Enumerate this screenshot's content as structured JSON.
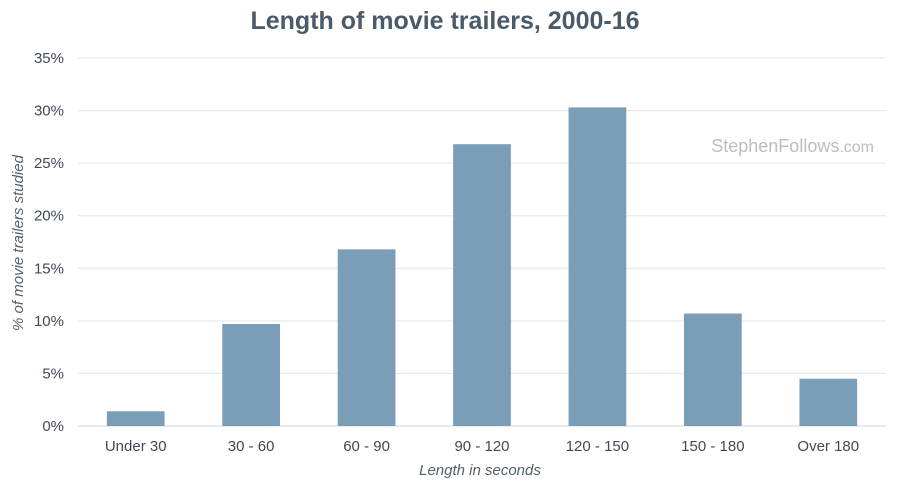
{
  "chart_data": {
    "type": "bar",
    "title": "Length of movie trailers, 2000-16",
    "xlabel": "Length in seconds",
    "ylabel": "% of movie trailers studied",
    "categories": [
      "Under 30",
      "30 - 60",
      "60 - 90",
      "90 - 120",
      "120 - 150",
      "150 - 180",
      "Over 180"
    ],
    "values": [
      1.4,
      9.7,
      16.8,
      26.8,
      30.3,
      10.7,
      4.5
    ],
    "ylim": [
      0,
      35
    ],
    "yticks": [
      0,
      5,
      10,
      15,
      20,
      25,
      30,
      35
    ],
    "ytick_labels": [
      "0%",
      "5%",
      "10%",
      "15%",
      "20%",
      "25%",
      "30%",
      "35%"
    ],
    "grid": true,
    "bar_color": "#7a9db8",
    "watermark": {
      "main": "StephenFollows",
      "suffix": ".com"
    }
  }
}
